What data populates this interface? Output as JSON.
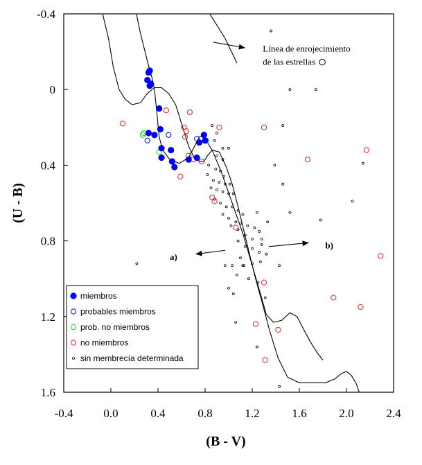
{
  "chart_data": {
    "type": "scatter",
    "xlabel": "(B - V)",
    "ylabel": "(U - B)",
    "xlim": [
      -0.4,
      2.4
    ],
    "ylim": [
      -0.4,
      1.6
    ],
    "y_inverted": true,
    "x_ticks": [
      -0.4,
      0.0,
      0.4,
      0.8,
      1.2,
      1.6,
      2.0,
      2.4
    ],
    "x_tick_labels": [
      "-0.4",
      "0.0",
      "0.4",
      "0.8",
      "1.2",
      "1.6",
      "2.0",
      "2.4"
    ],
    "y_ticks": [
      -0.4,
      0.0,
      0.4,
      0.8,
      1.2,
      1.6
    ],
    "y_tick_labels": [
      "-0.4",
      "0",
      "0.4",
      "0.8",
      "1.2",
      "1.6"
    ],
    "grid": false,
    "legend_position": "bottom-left",
    "series": [
      {
        "name": "miembros",
        "marker": "filled-circle",
        "color": "#0000ee",
        "points": [
          [
            0.32,
            -0.09
          ],
          [
            0.33,
            -0.1
          ],
          [
            0.31,
            -0.05
          ],
          [
            0.34,
            -0.03
          ],
          [
            0.33,
            -0.02
          ],
          [
            0.41,
            0.1
          ],
          [
            0.42,
            0.21
          ],
          [
            0.37,
            0.24
          ],
          [
            0.32,
            0.23
          ],
          [
            0.43,
            0.31
          ],
          [
            0.51,
            0.32
          ],
          [
            0.43,
            0.36
          ],
          [
            0.52,
            0.38
          ],
          [
            0.54,
            0.41
          ],
          [
            0.66,
            0.37
          ],
          [
            0.73,
            0.36
          ],
          [
            0.75,
            0.28
          ],
          [
            0.79,
            0.24
          ],
          [
            0.8,
            0.27
          ]
        ]
      },
      {
        "name": "probables miembros",
        "marker": "open-circle",
        "color": "#0000ee",
        "points": [
          [
            0.31,
            0.27
          ],
          [
            0.49,
            0.24
          ],
          [
            0.73,
            0.26
          ]
        ]
      },
      {
        "name": "prob. no miembros",
        "marker": "open-circle",
        "color": "#22cc22",
        "points": [
          [
            0.28,
            0.23
          ],
          [
            0.27,
            0.24
          ],
          [
            0.41,
            0.33
          ],
          [
            0.81,
            0.27
          ]
        ]
      },
      {
        "name": "no miembros",
        "marker": "open-circle",
        "color": "#dd2222",
        "points": [
          [
            0.47,
            0.11
          ],
          [
            0.67,
            0.12
          ],
          [
            0.1,
            0.18
          ],
          [
            0.62,
            0.2
          ],
          [
            0.64,
            0.22
          ],
          [
            0.92,
            0.2
          ],
          [
            1.3,
            0.2
          ],
          [
            0.63,
            0.25
          ],
          [
            0.79,
            0.24
          ],
          [
            0.66,
            0.35
          ],
          [
            0.7,
            0.37
          ],
          [
            0.77,
            0.38
          ],
          [
            0.86,
            0.57
          ],
          [
            0.59,
            0.46
          ],
          [
            1.67,
            0.37
          ],
          [
            2.17,
            0.32
          ],
          [
            1.06,
            0.73
          ],
          [
            1.3,
            1.02
          ],
          [
            1.23,
            1.24
          ],
          [
            1.42,
            1.27
          ],
          [
            1.31,
            1.43
          ],
          [
            1.89,
            1.1
          ],
          [
            2.12,
            1.15
          ],
          [
            2.29,
            0.88
          ],
          [
            0.88,
            0.59
          ]
        ]
      },
      {
        "name": "sin membrecía determinada",
        "marker": "small-open-circle",
        "color": "#000000",
        "points": [
          [
            1.36,
            -0.31
          ],
          [
            1.52,
            0.0
          ],
          [
            1.74,
            0.0
          ],
          [
            1.46,
            0.19
          ],
          [
            1.39,
            0.4
          ],
          [
            1.46,
            0.5
          ],
          [
            1.52,
            0.65
          ],
          [
            1.78,
            0.69
          ],
          [
            2.05,
            0.59
          ],
          [
            2.14,
            0.39
          ],
          [
            1.43,
            0.93
          ],
          [
            1.43,
            1.57
          ],
          [
            0.22,
            0.92
          ],
          [
            0.86,
            0.19
          ],
          [
            0.9,
            0.23
          ],
          [
            0.88,
            0.27
          ],
          [
            0.95,
            0.31
          ],
          [
            1.0,
            0.31
          ],
          [
            0.9,
            0.35
          ],
          [
            0.95,
            0.37
          ],
          [
            0.83,
            0.4
          ],
          [
            0.89,
            0.42
          ],
          [
            0.93,
            0.43
          ],
          [
            0.96,
            0.46
          ],
          [
            0.82,
            0.45
          ],
          [
            0.87,
            0.48
          ],
          [
            0.92,
            0.49
          ],
          [
            0.97,
            0.5
          ],
          [
            1.01,
            0.5
          ],
          [
            0.85,
            0.52
          ],
          [
            0.9,
            0.53
          ],
          [
            0.95,
            0.54
          ],
          [
            1.0,
            0.55
          ],
          [
            1.04,
            0.55
          ],
          [
            0.88,
            0.58
          ],
          [
            0.93,
            0.6
          ],
          [
            0.98,
            0.62
          ],
          [
            1.03,
            0.62
          ],
          [
            1.08,
            0.64
          ],
          [
            1.12,
            0.66
          ],
          [
            0.95,
            0.66
          ],
          [
            1.0,
            0.68
          ],
          [
            1.06,
            0.7
          ],
          [
            1.1,
            0.71
          ],
          [
            1.16,
            0.72
          ],
          [
            1.22,
            0.73
          ],
          [
            1.26,
            0.75
          ],
          [
            1.02,
            0.72
          ],
          [
            1.08,
            0.74
          ],
          [
            1.14,
            0.77
          ],
          [
            1.2,
            0.79
          ],
          [
            1.28,
            0.79
          ],
          [
            1.33,
            0.7
          ],
          [
            1.24,
            0.65
          ],
          [
            1.08,
            0.8
          ],
          [
            1.14,
            0.83
          ],
          [
            1.2,
            0.84
          ],
          [
            1.26,
            0.86
          ],
          [
            1.32,
            0.87
          ],
          [
            1.28,
            0.82
          ],
          [
            0.97,
            0.93
          ],
          [
            1.03,
            0.93
          ],
          [
            1.12,
            0.93
          ],
          [
            1.13,
            0.93
          ],
          [
            1.2,
            0.92
          ],
          [
            1.27,
            0.91
          ],
          [
            1.07,
            0.98
          ],
          [
            1.17,
            1.0
          ],
          [
            1.25,
            1.02
          ],
          [
            1.04,
            1.08
          ],
          [
            1.0,
            1.05
          ],
          [
            1.24,
            1.36
          ],
          [
            1.06,
            1.23
          ],
          [
            1.31,
            1.1
          ],
          [
            1.1,
            0.89
          ]
        ]
      }
    ],
    "curves": [
      {
        "name": "sequence-upper",
        "points": [
          [
            0.17,
            -0.56
          ],
          [
            0.2,
            -0.45
          ],
          [
            0.25,
            -0.3
          ],
          [
            0.31,
            -0.15
          ],
          [
            0.35,
            -0.06
          ],
          [
            0.37,
            0.0
          ],
          [
            0.39,
            0.12
          ],
          [
            0.41,
            0.25
          ],
          [
            0.44,
            0.32
          ],
          [
            0.5,
            0.37
          ],
          [
            0.58,
            0.39
          ],
          [
            0.66,
            0.36
          ],
          [
            0.71,
            0.3
          ],
          [
            0.75,
            0.25
          ],
          [
            0.79,
            0.25
          ],
          [
            0.86,
            0.32
          ],
          [
            0.94,
            0.44
          ],
          [
            1.03,
            0.6
          ],
          [
            1.12,
            0.76
          ],
          [
            1.2,
            0.93
          ],
          [
            1.27,
            1.08
          ],
          [
            1.32,
            1.19
          ],
          [
            1.38,
            1.23
          ],
          [
            1.45,
            1.22
          ],
          [
            1.52,
            1.18
          ],
          [
            1.58,
            1.2
          ],
          [
            1.63,
            1.26
          ],
          [
            1.69,
            1.33
          ],
          [
            1.75,
            1.39
          ],
          [
            1.8,
            1.43
          ]
        ]
      },
      {
        "name": "sequence-lower",
        "points": [
          [
            -0.14,
            -0.56
          ],
          [
            -0.07,
            -0.4
          ],
          [
            -0.02,
            -0.27
          ],
          [
            0.02,
            -0.12
          ],
          [
            0.07,
            0.0
          ],
          [
            0.12,
            0.05
          ],
          [
            0.18,
            0.08
          ],
          [
            0.25,
            0.07
          ],
          [
            0.31,
            0.02
          ],
          [
            0.37,
            -0.01
          ],
          [
            0.43,
            -0.01
          ],
          [
            0.49,
            0.02
          ],
          [
            0.55,
            0.08
          ],
          [
            0.61,
            0.2
          ],
          [
            0.66,
            0.3
          ],
          [
            0.7,
            0.35
          ],
          [
            0.75,
            0.38
          ],
          [
            0.79,
            0.38
          ],
          [
            0.82,
            0.35
          ],
          [
            0.86,
            0.32
          ],
          [
            0.92,
            0.33
          ],
          [
            0.98,
            0.41
          ],
          [
            1.03,
            0.5
          ],
          [
            1.08,
            0.62
          ],
          [
            1.15,
            0.8
          ],
          [
            1.22,
            0.98
          ],
          [
            1.29,
            1.14
          ],
          [
            1.35,
            1.28
          ],
          [
            1.42,
            1.42
          ],
          [
            1.5,
            1.52
          ],
          [
            1.6,
            1.55
          ],
          [
            1.7,
            1.55
          ],
          [
            1.82,
            1.55
          ],
          [
            1.9,
            1.53
          ],
          [
            1.96,
            1.5
          ],
          [
            2.0,
            1.49
          ],
          [
            2.04,
            1.51
          ],
          [
            2.08,
            1.55
          ],
          [
            2.12,
            1.62
          ]
        ]
      },
      {
        "name": "reddening-line",
        "points": [
          [
            0.72,
            -0.52
          ],
          [
            0.97,
            -0.27
          ],
          [
            1.07,
            -0.14
          ]
        ]
      }
    ],
    "arrows": [
      {
        "name": "reddening-arrow",
        "from": [
          0.87,
          -0.25
        ],
        "to": [
          1.14,
          -0.22
        ]
      },
      {
        "name": "arrow-a",
        "from": [
          0.97,
          0.85
        ],
        "to": [
          0.72,
          0.87
        ]
      },
      {
        "name": "arrow-b",
        "from": [
          1.34,
          0.83
        ],
        "to": [
          1.68,
          0.81
        ]
      }
    ],
    "annotations": [
      {
        "name": "reddening-label-line1",
        "text": "Línea de enrojecimiento",
        "x": 1.29,
        "y": -0.2
      },
      {
        "name": "reddening-label-line2",
        "text": "de las estrellas",
        "x": 1.29,
        "y": -0.13
      },
      {
        "name": "label-a",
        "text": "a)",
        "x": 0.5,
        "y": 0.9
      },
      {
        "name": "label-b",
        "text": "b)",
        "x": 1.82,
        "y": 0.84
      }
    ],
    "legend": [
      {
        "label": "miembros",
        "marker": "filled-circle",
        "color": "#0000ee"
      },
      {
        "label": "probables miembros",
        "marker": "open-circle",
        "color": "#0000ee"
      },
      {
        "label": "prob. no miembros",
        "marker": "open-circle",
        "color": "#22cc22"
      },
      {
        "label": "no miembros",
        "marker": "open-circle",
        "color": "#dd2222"
      },
      {
        "label": "sin membrecía determinada",
        "marker": "small-open-circle",
        "color": "#000000"
      }
    ]
  }
}
